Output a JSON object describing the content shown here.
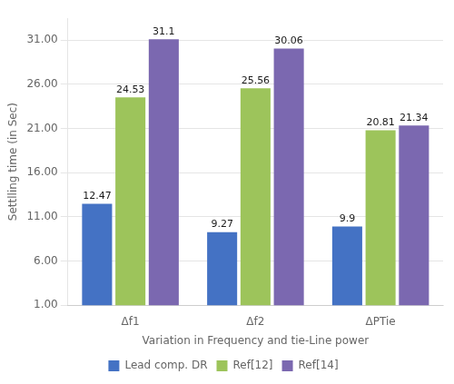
{
  "chart_data": {
    "type": "bar",
    "categories": [
      "Δf1",
      "Δf2",
      "ΔPTie"
    ],
    "series": [
      {
        "name": "Lead comp. DR",
        "color": "#4472C4",
        "values": [
          12.47,
          9.27,
          9.9
        ]
      },
      {
        "name": "Ref[12]",
        "color": "#9DC45B",
        "values": [
          24.53,
          25.56,
          20.81
        ]
      },
      {
        "name": "Ref[14]",
        "color": "#7B68B0",
        "values": [
          31.1,
          30.06,
          21.34
        ]
      }
    ],
    "xlabel": "Variation in Frequency and tie-Line power",
    "ylabel": "Settlling time (in Sec)",
    "ylim": [
      1.0,
      33.5
    ],
    "yticks": [
      {
        "value": 1.0,
        "label": "1.00"
      },
      {
        "value": 6.0,
        "label": "6.00"
      },
      {
        "value": 11.0,
        "label": "11.00"
      },
      {
        "value": 16.0,
        "label": "16.00"
      },
      {
        "value": 21.0,
        "label": "21.00"
      },
      {
        "value": 26.0,
        "label": "26.00"
      },
      {
        "value": 31.0,
        "label": "31.00"
      }
    ],
    "grid": true,
    "data_labels": true,
    "legend": "bottom"
  }
}
